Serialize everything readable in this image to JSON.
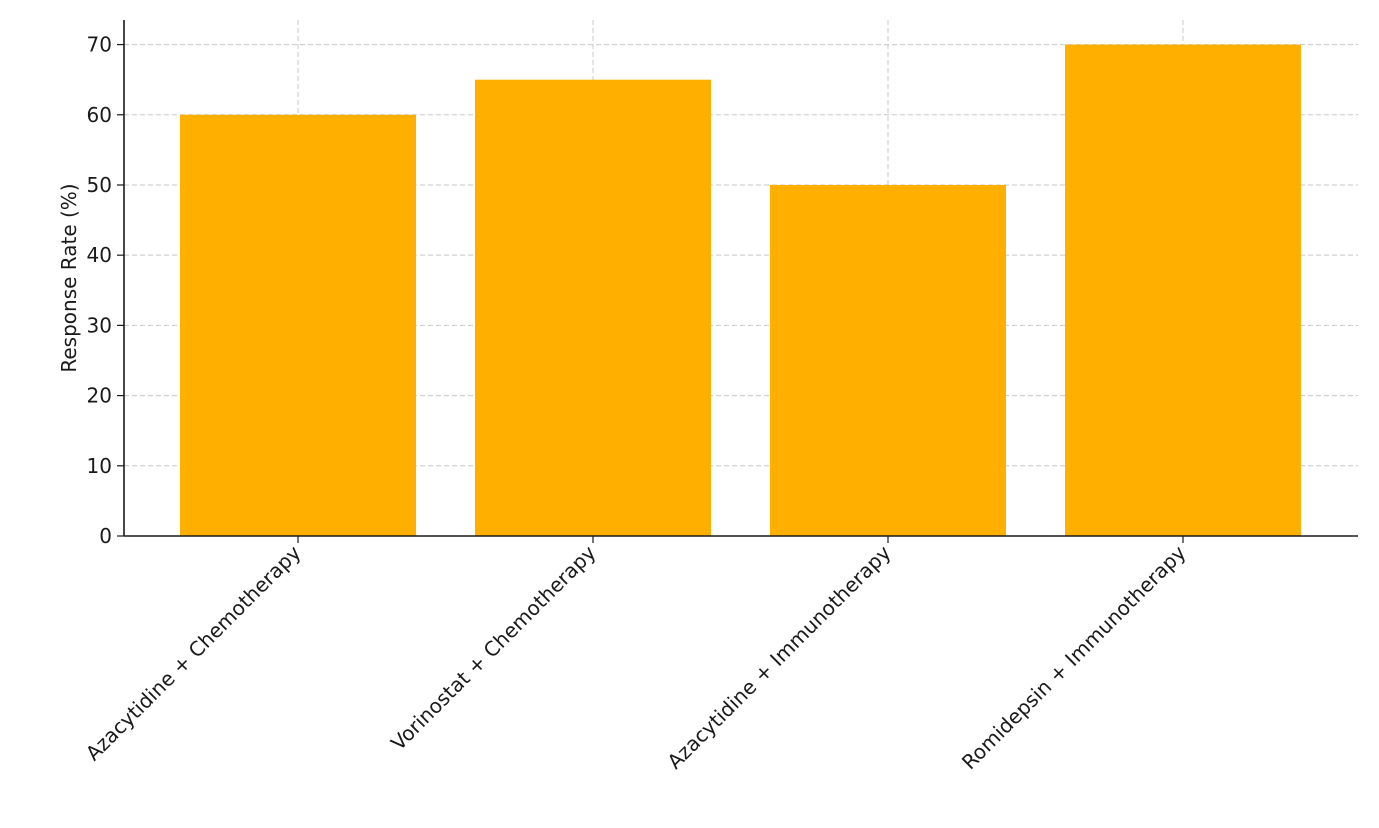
{
  "chart_data": {
    "type": "bar",
    "categories": [
      "Azacytidine + Chemotherapy",
      "Vorinostat + Chemotherapy",
      "Azacytidine + Immunotherapy",
      "Romidepsin + Immunotherapy"
    ],
    "values": [
      60,
      65,
      50,
      70
    ],
    "ylabel": "Response Rate (%)",
    "ylim": [
      0,
      73.5
    ],
    "yticks": [
      0,
      10,
      20,
      30,
      40,
      50,
      60,
      70
    ],
    "grid": true,
    "bar_color": "#FFAF00"
  }
}
